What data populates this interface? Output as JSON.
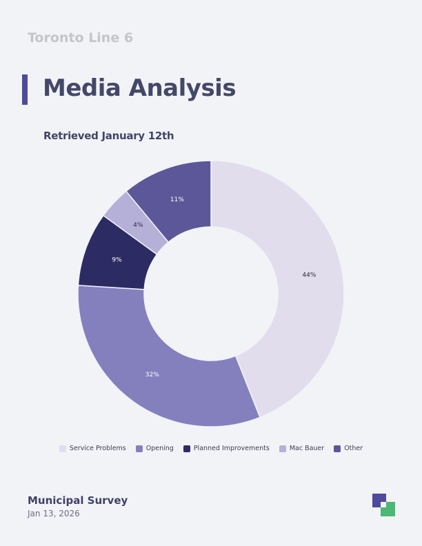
{
  "header": {
    "supertitle": "Toronto Line 6",
    "title": "Media Analysis",
    "subtitle": "Retrieved January 12th"
  },
  "footer": {
    "title": "Municipal Survey",
    "date": "Jan 13, 2026"
  },
  "logo": {
    "icon": "brand-logo-icon",
    "colors": [
      "#4e4a9c",
      "#4cb875"
    ]
  },
  "chart_data": {
    "type": "pie",
    "variant": "donut",
    "categories": [
      "Service Problems",
      "Opening",
      "Planned Improvements",
      "Mac Bauer",
      "Other"
    ],
    "values": [
      44,
      32,
      9,
      4,
      11
    ],
    "labels": [
      "44%",
      "32%",
      "9%",
      "4%",
      "11%"
    ],
    "colors": [
      "#e2dded",
      "#8480be",
      "#2c2b63",
      "#b5b0d8",
      "#5b5798"
    ],
    "label_colors": [
      "#2c2b40",
      "#ffffff",
      "#ffffff",
      "#2c2b40",
      "#ffffff"
    ],
    "start_angle": "12 o'clock",
    "direction": "clockwise",
    "legend_position": "bottom"
  }
}
